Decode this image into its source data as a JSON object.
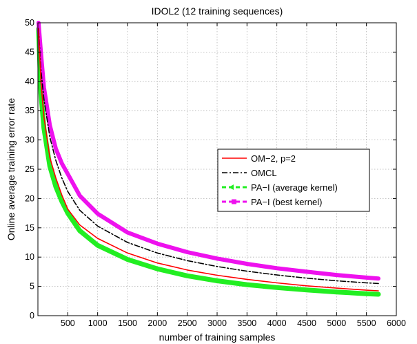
{
  "chart_data": {
    "type": "line",
    "title": "IDOL2 (12 training sequences)",
    "xlabel": "number of training samples",
    "ylabel": "Online average training error rate",
    "xlim": [
      0,
      6000
    ],
    "ylim": [
      0,
      50
    ],
    "xticks": [
      500,
      1000,
      1500,
      2000,
      2500,
      3000,
      3500,
      4000,
      4500,
      5000,
      5500,
      6000
    ],
    "yticks": [
      0,
      5,
      10,
      15,
      20,
      25,
      30,
      35,
      40,
      45,
      50
    ],
    "grid": true,
    "legend_position": "center-right",
    "series": [
      {
        "name": "OM−2, p=2",
        "color": "#ff0000",
        "style": "solid",
        "x": [
          10,
          50,
          100,
          200,
          300,
          400,
          500,
          700,
          1000,
          1500,
          2000,
          2500,
          3000,
          3500,
          4000,
          4500,
          5000,
          5500,
          5700
        ],
        "y": [
          49,
          40,
          34,
          27,
          23.5,
          20.6,
          18.2,
          15.5,
          13.2,
          10.7,
          9.0,
          7.8,
          6.9,
          6.2,
          5.6,
          5.1,
          4.7,
          4.35,
          4.25
        ]
      },
      {
        "name": "OMCL",
        "color": "#000000",
        "style": "dashdot",
        "x": [
          10,
          50,
          100,
          200,
          300,
          400,
          500,
          700,
          1000,
          1500,
          2000,
          2500,
          3000,
          3500,
          4000,
          4500,
          5000,
          5500,
          5700
        ],
        "y": [
          49,
          42,
          37,
          30.5,
          26.5,
          23.5,
          21.2,
          18.0,
          15.3,
          12.5,
          10.7,
          9.4,
          8.4,
          7.6,
          6.95,
          6.4,
          5.95,
          5.6,
          5.5
        ]
      },
      {
        "name": "PA−I (average kernel)",
        "color": "#22ee22",
        "style": "dashed",
        "x": [
          10,
          50,
          100,
          200,
          300,
          400,
          500,
          700,
          1000,
          1500,
          2000,
          2500,
          3000,
          3500,
          4000,
          4500,
          5000,
          5500,
          5700
        ],
        "y": [
          49,
          38,
          32,
          25.5,
          22,
          19.5,
          17.5,
          14.5,
          12.0,
          9.6,
          8.0,
          6.8,
          5.95,
          5.3,
          4.8,
          4.4,
          4.05,
          3.75,
          3.65
        ]
      },
      {
        "name": "PA−I (best kernel)",
        "color": "#ee11ee",
        "style": "dashed",
        "x": [
          10,
          50,
          100,
          200,
          300,
          400,
          500,
          700,
          1000,
          1500,
          2000,
          2500,
          3000,
          3500,
          4000,
          4500,
          5000,
          5500,
          5700
        ],
        "y": [
          50,
          45,
          39,
          32.5,
          28.5,
          26,
          24.2,
          20.5,
          17.4,
          14.2,
          12.3,
          10.85,
          9.75,
          8.85,
          8.1,
          7.5,
          6.95,
          6.5,
          6.35
        ]
      }
    ]
  }
}
